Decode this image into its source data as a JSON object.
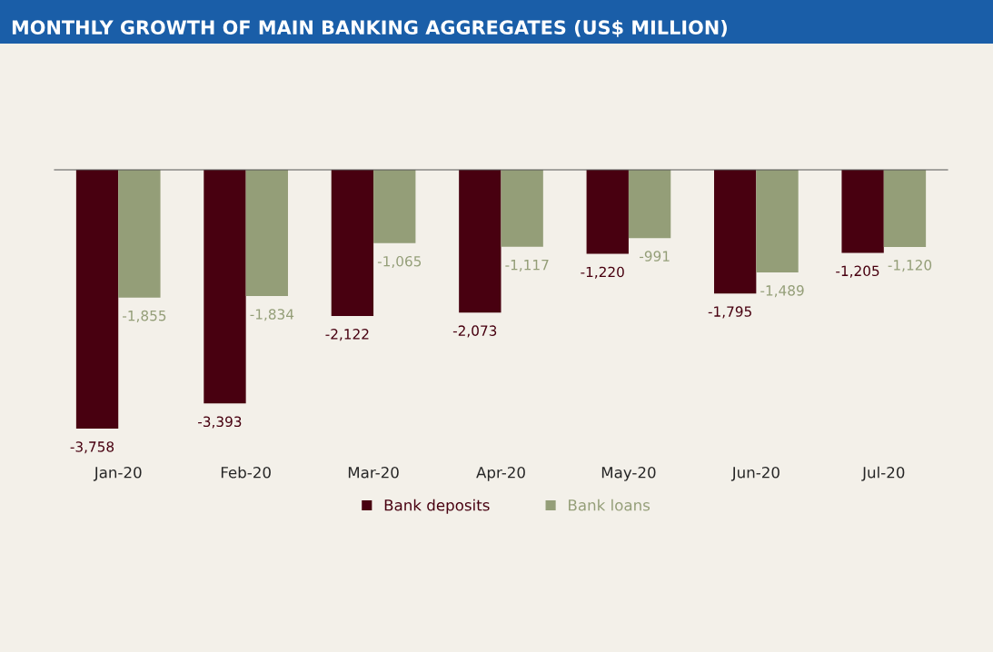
{
  "chart_data": {
    "type": "bar",
    "title": "MONTHLY GROWTH OF MAIN BANKING AGGREGATES (US$ MILLION)",
    "categories": [
      "Jan-20",
      "Feb-20",
      "Mar-20",
      "Apr-20",
      "May-20",
      "Jun-20",
      "Jul-20"
    ],
    "series": [
      {
        "name": "Bank deposits",
        "color": "#480010",
        "values": [
          -3758,
          -3393,
          -2122,
          -2073,
          -1220,
          -1795,
          -1205
        ],
        "value_labels": [
          "-3,758",
          "-3,393",
          "-2,122",
          "-2,073",
          "-1,220",
          "-1,795",
          "-1,205"
        ]
      },
      {
        "name": "Bank loans",
        "color": "#949e78",
        "values": [
          -1855,
          -1834,
          -1065,
          -1117,
          -991,
          -1489,
          -1120
        ],
        "value_labels": [
          "-1,855",
          "-1,834",
          "-1,065",
          "-1,117",
          "-991",
          "-1,489",
          "-1,120"
        ]
      }
    ],
    "legend": "bottom",
    "grid": false
  }
}
